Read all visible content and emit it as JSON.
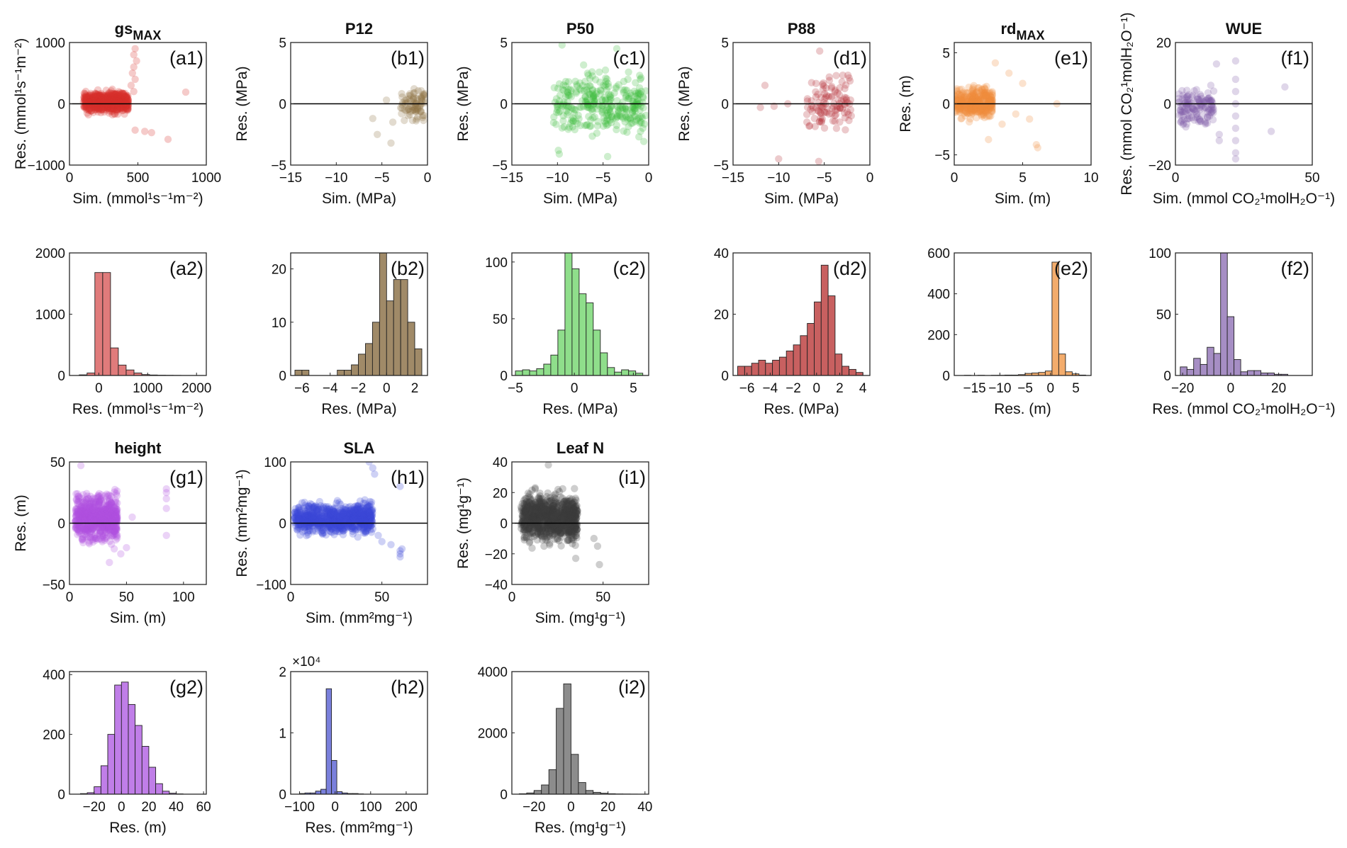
{
  "chart_data": [
    {
      "id": "a1",
      "type": "scatter",
      "title": "gs",
      "title_sub": "MAX",
      "panel_label": "(a1)",
      "xlabel": "Sim. (mmol¹s⁻¹m⁻²)",
      "ylabel": "Res. (mmol¹s⁻¹m⁻²)",
      "xlim": [
        0,
        1000
      ],
      "ylim": [
        -1000,
        1000
      ],
      "xticks": [
        0,
        500,
        1000
      ],
      "yticks": [
        -1000,
        0,
        1000
      ],
      "color": "#d6302c",
      "gen": {
        "n": 700,
        "seed": 11,
        "xr": [
          100,
          430
        ],
        "yr": [
          -200,
          250
        ],
        "sprinkle": [
          [
            480,
            -430
          ],
          [
            550,
            -450
          ],
          [
            600,
            -470
          ],
          [
            720,
            -580
          ],
          [
            850,
            190
          ],
          [
            480,
            900
          ],
          [
            470,
            800
          ],
          [
            490,
            700
          ],
          [
            470,
            600
          ],
          [
            460,
            500
          ],
          [
            480,
            400
          ],
          [
            450,
            300
          ],
          [
            470,
            200
          ]
        ]
      }
    },
    {
      "id": "b1",
      "type": "scatter",
      "title": "P12",
      "panel_label": "(b1)",
      "xlabel": "Sim. (MPa)",
      "ylabel": "Res. (MPa)",
      "xlim": [
        -15,
        0
      ],
      "ylim": [
        -5,
        5
      ],
      "xticks": [
        -15,
        -10,
        -5,
        0
      ],
      "yticks": [
        -5,
        0,
        5
      ],
      "color": "#8a7040",
      "gen": {
        "n": 80,
        "seed": 22,
        "xr": [
          -3,
          -0.2
        ],
        "yr": [
          -1.8,
          1.9
        ],
        "sprinkle": [
          [
            -6,
            -1.2
          ],
          [
            -5.5,
            -2.5
          ],
          [
            -4,
            -3.2
          ],
          [
            -3.8,
            -1.5
          ],
          [
            -4.5,
            0.3
          ]
        ]
      }
    },
    {
      "id": "c1",
      "type": "scatter",
      "title": "P50",
      "panel_label": "(c1)",
      "xlabel": "Sim. (MPa)",
      "ylabel": "Res. (MPa)",
      "xlim": [
        -15,
        0
      ],
      "ylim": [
        -5,
        5
      ],
      "xticks": [
        -15,
        -10,
        -5,
        0
      ],
      "yticks": [
        -5,
        0,
        5
      ],
      "color": "#3dbd3d",
      "gen": {
        "n": 320,
        "seed": 33,
        "xr": [
          -10.5,
          -0.3
        ],
        "yr": [
          -3.5,
          3.5
        ],
        "sprinkle": [
          [
            -9.5,
            4.8
          ],
          [
            -9.8,
            -4.1
          ],
          [
            -4.5,
            -4.3
          ],
          [
            -3.5,
            4.5
          ],
          [
            -9.9,
            -3.8
          ]
        ]
      }
    },
    {
      "id": "d1",
      "type": "scatter",
      "title": "P88",
      "panel_label": "(d1)",
      "xlabel": "Sim. (MPa)",
      "ylabel": "Res. (MPa)",
      "xlim": [
        -15,
        0
      ],
      "ylim": [
        -5,
        5
      ],
      "xticks": [
        -15,
        -10,
        -5,
        0
      ],
      "yticks": [
        -5,
        0,
        5
      ],
      "color": "#b22a35",
      "gen": {
        "n": 110,
        "seed": 44,
        "xr": [
          -7,
          -2
        ],
        "yr": [
          -3.4,
          3.2
        ],
        "sprinkle": [
          [
            -10,
            -4.5
          ],
          [
            -11.5,
            1.5
          ],
          [
            -12,
            -0.3
          ],
          [
            -9,
            0
          ],
          [
            -10.5,
            -0.2
          ],
          [
            -5.5,
            4.3
          ],
          [
            -5.6,
            -4.7
          ]
        ]
      }
    },
    {
      "id": "e1",
      "type": "scatter",
      "title": "rd",
      "title_sub": "MAX",
      "panel_label": "(e1)",
      "xlabel": "Sim. (m)",
      "ylabel": "Res. (m)",
      "xlim": [
        0,
        10
      ],
      "ylim": [
        -6,
        6
      ],
      "xticks": [
        0,
        5,
        10
      ],
      "yticks": [
        -5,
        0,
        5
      ],
      "color": "#f08a3a",
      "gen": {
        "n": 380,
        "seed": 55,
        "xr": [
          0,
          2.8
        ],
        "yr": [
          -2,
          2.2
        ],
        "sprinkle": [
          [
            3,
            4
          ],
          [
            4,
            3
          ],
          [
            5,
            2
          ],
          [
            6,
            -4
          ],
          [
            6.1,
            -4.3
          ],
          [
            7.5,
            0
          ],
          [
            5.5,
            -1.5
          ],
          [
            4.5,
            -1
          ],
          [
            3.5,
            -2
          ],
          [
            2.5,
            -3.5
          ]
        ]
      }
    },
    {
      "id": "f1",
      "type": "scatter",
      "title": "WUE",
      "panel_label": "(f1)",
      "xlabel": "Sim. (mmol CO₂¹molH₂O⁻¹)",
      "ylabel": "Res. (mmol CO₂¹molH₂O⁻¹)",
      "xlim": [
        0,
        50
      ],
      "ylim": [
        -20,
        20
      ],
      "xticks": [
        0,
        50
      ],
      "yticks": [
        -20,
        0,
        20
      ],
      "color": "#7f5aa8",
      "gen": {
        "n": 140,
        "seed": 66,
        "xr": [
          1,
          14
        ],
        "yr": [
          -10,
          8
        ],
        "sprinkle": [
          [
            22,
            14
          ],
          [
            22,
            -18
          ],
          [
            22,
            -16
          ],
          [
            22,
            -12
          ],
          [
            22,
            -8
          ],
          [
            22,
            -4
          ],
          [
            22,
            0
          ],
          [
            22,
            4
          ],
          [
            22,
            8
          ],
          [
            16,
            -10
          ],
          [
            16,
            -12
          ],
          [
            35,
            -9
          ],
          [
            40,
            5.5
          ],
          [
            15,
            13
          ]
        ]
      }
    },
    {
      "id": "g1",
      "type": "scatter",
      "title": "height",
      "panel_label": "(g1)",
      "xlabel": "Sim. (m)",
      "ylabel": "Res. (m)",
      "xlim": [
        0,
        120
      ],
      "ylim": [
        -50,
        50
      ],
      "xticks": [
        0,
        50,
        100
      ],
      "yticks": [
        -50,
        0,
        50
      ],
      "color": "#b14fe0",
      "gen": {
        "n": 700,
        "seed": 77,
        "xr": [
          5,
          42
        ],
        "yr": [
          -22,
          30
        ],
        "sprinkle": [
          [
            10,
            47
          ],
          [
            85,
            25
          ],
          [
            85,
            28
          ],
          [
            85,
            20
          ],
          [
            85,
            12
          ],
          [
            85,
            -10
          ],
          [
            50,
            -20
          ],
          [
            55,
            5
          ],
          [
            35,
            -32
          ],
          [
            45,
            -25
          ]
        ]
      }
    },
    {
      "id": "h1",
      "type": "scatter",
      "title": "SLA",
      "panel_label": "(h1)",
      "xlabel": "Sim. (mm²mg⁻¹)",
      "ylabel": "Res. (mm²mg⁻¹)",
      "xlim": [
        0,
        75
      ],
      "ylim": [
        -100,
        100
      ],
      "xticks": [
        0,
        50
      ],
      "yticks": [
        -100,
        0,
        100
      ],
      "color": "#3b49d6",
      "gen": {
        "n": 900,
        "seed": 88,
        "xr": [
          2,
          45
        ],
        "yr": [
          -25,
          40
        ],
        "sprinkle": [
          [
            60,
            -45
          ],
          [
            60,
            -50
          ],
          [
            60,
            -55
          ],
          [
            61,
            -42
          ],
          [
            55,
            -35
          ],
          [
            50,
            -30
          ],
          [
            48,
            -20
          ],
          [
            46,
            80
          ],
          [
            43,
            100
          ],
          [
            45,
            90
          ],
          [
            60,
            60
          ]
        ]
      }
    },
    {
      "id": "i1",
      "type": "scatter",
      "title": "Leaf N",
      "panel_label": "(i1)",
      "xlabel": "Sim. (mg¹g⁻¹)",
      "ylabel": "Res. (mg¹g⁻¹)",
      "xlim": [
        0,
        75
      ],
      "ylim": [
        -40,
        40
      ],
      "xticks": [
        0,
        50
      ],
      "yticks": [
        -40,
        -20,
        0,
        20,
        40
      ],
      "color": "#3a3a3a",
      "gen": {
        "n": 900,
        "seed": 99,
        "xr": [
          5,
          36
        ],
        "yr": [
          -18,
          25
        ],
        "sprinkle": [
          [
            20,
            38
          ],
          [
            45,
            -10
          ],
          [
            47,
            -15
          ],
          [
            48,
            -27
          ],
          [
            35,
            -23
          ]
        ]
      }
    },
    {
      "id": "a2",
      "type": "bar",
      "panel_label": "(a2)",
      "xlabel": "Res. (mmol¹s⁻¹m⁻²)",
      "xlim": [
        -600,
        2200
      ],
      "ylim": [
        0,
        2000
      ],
      "xticks": [
        0,
        1000,
        2000
      ],
      "yticks": [
        0,
        1000,
        2000
      ],
      "color": "#e07b7b",
      "bin_start": -400,
      "bin_width": 160,
      "values": [
        10,
        40,
        1680,
        1680,
        450,
        170,
        90,
        40,
        15,
        8,
        5,
        3,
        2,
        1,
        1,
        1,
        0,
        0
      ]
    },
    {
      "id": "b2",
      "type": "bar",
      "panel_label": "(b2)",
      "xlabel": "Res. (MPa)",
      "xlim": [
        -6.8,
        2.9
      ],
      "ylim": [
        0,
        23
      ],
      "xticks": [
        -6,
        -4,
        -2,
        0,
        2
      ],
      "yticks": [
        0,
        10,
        20
      ],
      "color": "#a08a68",
      "bin_start": -6.5,
      "bin_width": 0.5,
      "values": [
        1,
        1,
        0,
        0,
        0,
        0,
        1,
        1,
        2,
        4,
        6,
        10,
        23,
        14,
        18,
        18,
        10,
        5
      ]
    },
    {
      "id": "c2",
      "type": "bar",
      "panel_label": "(c2)",
      "xlabel": "Res. (MPa)",
      "xlim": [
        -5.3,
        6.3
      ],
      "ylim": [
        0,
        108
      ],
      "xticks": [
        -5,
        0,
        5
      ],
      "yticks": [
        0,
        50,
        100
      ],
      "color": "#8fde8b",
      "bin_start": -5,
      "bin_width": 0.6,
      "values": [
        4,
        5,
        4,
        6,
        10,
        18,
        40,
        108,
        94,
        72,
        64,
        40,
        20,
        7,
        3,
        5,
        4,
        2
      ]
    },
    {
      "id": "d2",
      "type": "bar",
      "panel_label": "(d2)",
      "xlabel": "Res. (MPa)",
      "xlim": [
        -7.2,
        4.6
      ],
      "ylim": [
        0,
        40
      ],
      "xticks": [
        -6,
        -4,
        -2,
        0,
        2,
        4
      ],
      "yticks": [
        0,
        20,
        40
      ],
      "color": "#c86060",
      "bin_start": -6.8,
      "bin_width": 0.6,
      "values": [
        3,
        3,
        4,
        5,
        4,
        5,
        6,
        8,
        10,
        13,
        17,
        24,
        36,
        26,
        7,
        3,
        2,
        1
      ]
    },
    {
      "id": "e2",
      "type": "bar",
      "panel_label": "(e2)",
      "xlabel": "Res. (m)",
      "xlim": [
        -19,
        8
      ],
      "ylim": [
        0,
        600
      ],
      "xticks": [
        -15,
        -10,
        -5,
        0,
        5
      ],
      "yticks": [
        0,
        200,
        400,
        600
      ],
      "color": "#f3ac6c",
      "bin_start": -17,
      "bin_width": 1.33,
      "values": [
        1,
        0,
        1,
        0,
        1,
        1,
        2,
        2,
        4,
        10,
        12,
        15,
        22,
        555,
        105,
        18,
        8,
        2
      ]
    },
    {
      "id": "f2",
      "type": "bar",
      "panel_label": "(f2)",
      "xlabel": "Res. (mmol CO₂¹molH₂O⁻¹)",
      "xlim": [
        -23,
        34
      ],
      "ylim": [
        0,
        100
      ],
      "xticks": [
        -20,
        0,
        20
      ],
      "yticks": [
        0,
        50,
        100
      ],
      "color": "#a68ec4",
      "bin_start": -21,
      "bin_width": 2.8,
      "values": [
        7,
        5,
        14,
        9,
        23,
        18,
        100,
        48,
        13,
        3,
        4,
        4,
        2,
        2,
        1,
        1
      ]
    },
    {
      "id": "g2",
      "type": "bar",
      "panel_label": "(g2)",
      "xlabel": "Res. (m)",
      "xlim": [
        -38,
        62
      ],
      "ylim": [
        0,
        410
      ],
      "xticks": [
        -20,
        0,
        20,
        40,
        60
      ],
      "yticks": [
        0,
        200,
        400
      ],
      "color": "#c07ee8",
      "bin_start": -30,
      "bin_width": 5,
      "values": [
        2,
        5,
        25,
        95,
        200,
        365,
        375,
        300,
        230,
        160,
        90,
        35,
        10,
        3,
        1,
        0
      ]
    },
    {
      "id": "h2",
      "type": "bar",
      "panel_label": "(h2)",
      "xlabel": "Res. (mm²mg⁻¹)",
      "xlim": [
        -125,
        260
      ],
      "ylim": [
        0,
        2
      ],
      "xticks": [
        -100,
        0,
        100,
        200
      ],
      "yticks": [
        0,
        1,
        2
      ],
      "color": "#7a80dc",
      "multiplier": "×10⁴",
      "bin_start": -100,
      "bin_width": 15,
      "values": [
        0.01,
        0.02,
        0.02,
        0.05,
        0.08,
        1.72,
        0.55,
        0.04,
        0.02,
        0.01,
        0.01,
        0.005,
        0,
        0,
        0,
        0,
        0,
        0,
        0,
        0,
        0,
        0,
        0,
        0
      ]
    },
    {
      "id": "i2",
      "type": "bar",
      "panel_label": "(i2)",
      "xlabel": "Res. (mg¹g⁻¹)",
      "xlim": [
        -32,
        42
      ],
      "ylim": [
        0,
        4000
      ],
      "xticks": [
        -20,
        0,
        20,
        40
      ],
      "yticks": [
        0,
        2000,
        4000
      ],
      "color": "#8c8c8c",
      "bin_start": -28,
      "bin_width": 4,
      "values": [
        15,
        40,
        120,
        300,
        800,
        2800,
        3600,
        1300,
        380,
        120,
        60,
        30,
        15,
        8,
        4,
        2,
        1,
        0
      ]
    }
  ]
}
